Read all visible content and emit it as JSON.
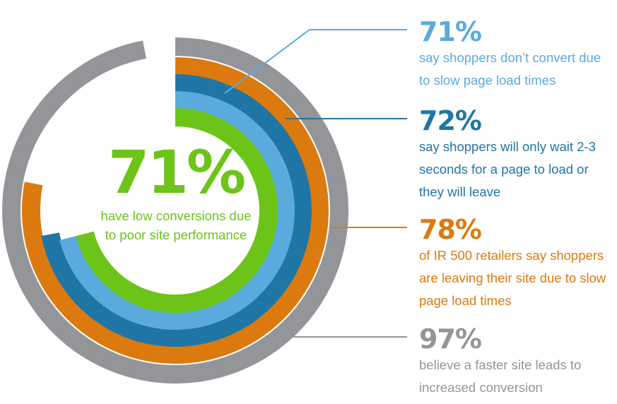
{
  "chart_data": {
    "type": "radial-bar",
    "max": 100,
    "series": [
      {
        "value": 97,
        "label": "97%",
        "text": "believe a faster site leads to increased conversion",
        "color": "#939598"
      },
      {
        "value": 78,
        "label": "78%",
        "text": "of IR 500 retailers say shoppers are leaving their site due to slow page load times",
        "color": "#dc7a0f"
      },
      {
        "value": 72,
        "label": "72%",
        "text": "say shoppers will only wait 2-3 seconds for a page to load or they will leave",
        "color": "#1f76a5"
      },
      {
        "value": 71,
        "label": "71%",
        "text": "say shoppers don’t convert due to slow page load times",
        "color": "#5aaade"
      },
      {
        "value": 71,
        "label": "71%",
        "text": "have low conversions due to poor site performance",
        "color": "#6cc418"
      }
    ]
  },
  "center": {
    "value": "71%",
    "text": "have low conversions due to poor site performance"
  },
  "callouts": [
    {
      "value": "71%",
      "text": "say shoppers don’t convert due to slow page load times"
    },
    {
      "value": "72%",
      "text": "say shoppers will only wait 2-3 seconds for a page to load or they will leave"
    },
    {
      "value": "78%",
      "text": "of IR 500 retailers say shoppers are leaving their site due to slow page load times"
    },
    {
      "value": "97%",
      "text": "believe a faster site leads to increased conversion"
    }
  ]
}
